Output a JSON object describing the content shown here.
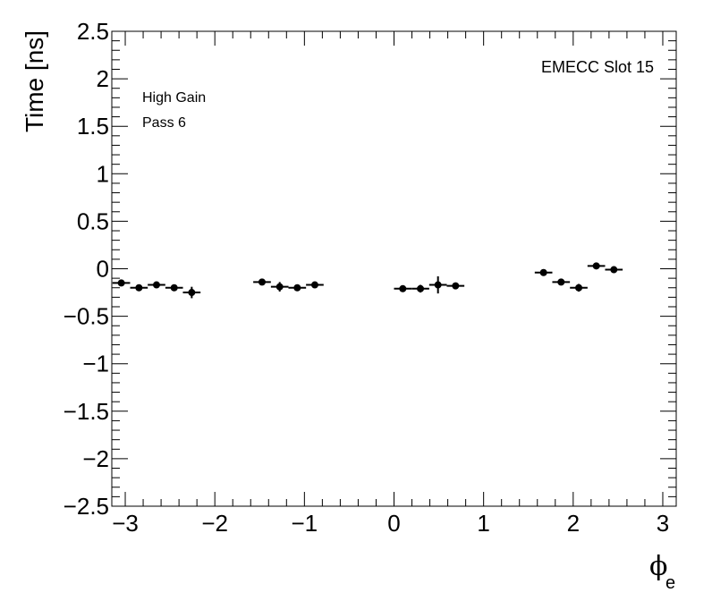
{
  "chart_data": {
    "type": "scatter",
    "ylabel": "Time [ns]",
    "xlabel_symbol": "ϕ",
    "xlabel_subscript": "e",
    "annotations": {
      "gain": "High Gain",
      "pass": "Pass 6",
      "slot": "EMECC Slot 15"
    },
    "xlim": [
      -3.15,
      3.15
    ],
    "ylim": [
      -2.5,
      2.5
    ],
    "x_major_ticks": [
      -3,
      -2,
      -1,
      0,
      1,
      2,
      3
    ],
    "x_tick_labels": [
      "−3",
      "−2",
      "−1",
      "0",
      "1",
      "2",
      "3"
    ],
    "y_major_ticks": [
      -2.5,
      -2,
      -1.5,
      -1,
      -0.5,
      0,
      0.5,
      1,
      1.5,
      2,
      2.5
    ],
    "y_tick_labels": [
      "−2.5",
      "−2",
      "−1.5",
      "−1",
      "−0.5",
      "0",
      "0.5",
      "1",
      "1.5",
      "2",
      "2.5"
    ],
    "grid": false,
    "x_bin_half_width": 0.0982,
    "series": [
      {
        "points": [
          {
            "x": -3.044,
            "y": -0.15,
            "yerr": 0.03
          },
          {
            "x": -2.847,
            "y": -0.2,
            "yerr": 0.03
          },
          {
            "x": -2.651,
            "y": -0.17,
            "yerr": 0.03
          },
          {
            "x": -2.454,
            "y": -0.2,
            "yerr": 0.03
          },
          {
            "x": -2.258,
            "y": -0.25,
            "yerr": 0.06
          },
          {
            "x": -1.473,
            "y": -0.14,
            "yerr": 0.03
          },
          {
            "x": -1.276,
            "y": -0.19,
            "yerr": 0.05
          },
          {
            "x": -1.08,
            "y": -0.2,
            "yerr": 0.03
          },
          {
            "x": -0.884,
            "y": -0.17,
            "yerr": 0.03
          },
          {
            "x": 0.098,
            "y": -0.21,
            "yerr": 0.03
          },
          {
            "x": 0.295,
            "y": -0.21,
            "yerr": 0.04
          },
          {
            "x": 0.491,
            "y": -0.17,
            "yerr": 0.09
          },
          {
            "x": 0.687,
            "y": -0.18,
            "yerr": 0.03
          },
          {
            "x": 1.669,
            "y": -0.04,
            "yerr": 0.03
          },
          {
            "x": 1.865,
            "y": -0.14,
            "yerr": 0.03
          },
          {
            "x": 2.062,
            "y": -0.2,
            "yerr": 0.04
          },
          {
            "x": 2.258,
            "y": 0.03,
            "yerr": 0.03
          },
          {
            "x": 2.454,
            "y": -0.01,
            "yerr": 0.03
          }
        ]
      }
    ]
  }
}
